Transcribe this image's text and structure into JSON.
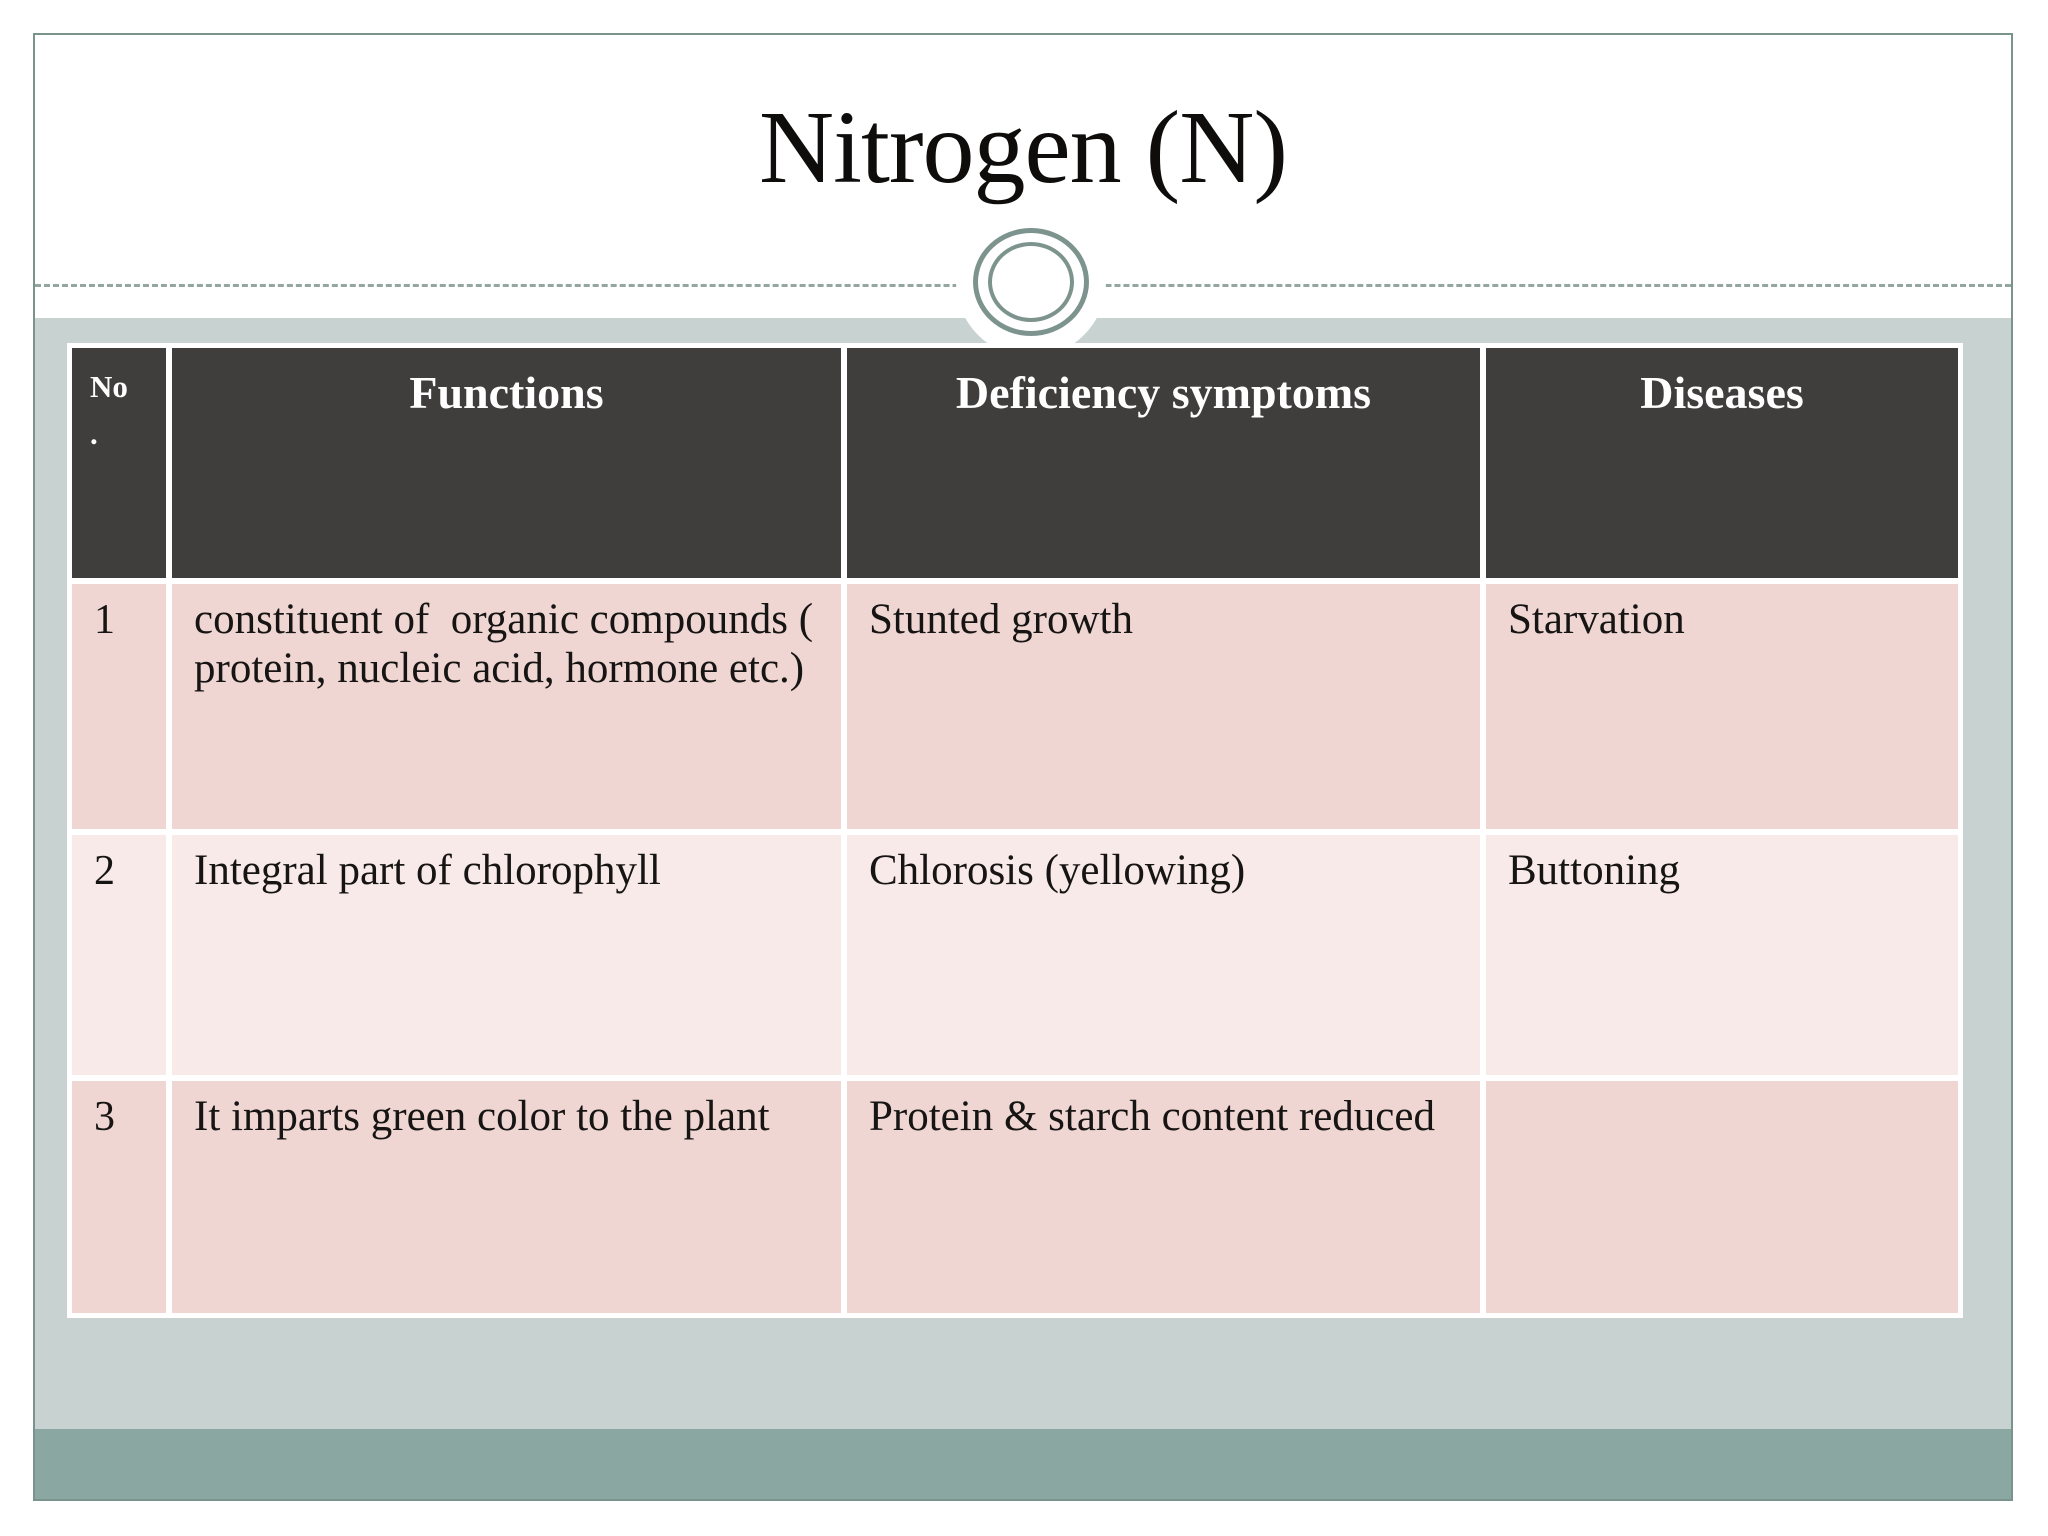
{
  "slide": {
    "title": "Nitrogen (N)"
  },
  "table": {
    "columns": [
      "No\n.",
      "Functions",
      "Deficiency symptoms",
      "Diseases"
    ],
    "rows": [
      {
        "no": "1",
        "function": "constituent of  organic compounds ( protein, nucleic acid, hormone etc.)",
        "symptom": "Stunted growth",
        "disease": "Starvation"
      },
      {
        "no": "2",
        "function": "Integral part of chlorophyll",
        "symptom": "Chlorosis (yellowing)",
        "disease": "Buttoning"
      },
      {
        "no": "3",
        "function": "It imparts green color to the plant",
        "symptom": "Protein & starch content reduced",
        "disease": ""
      }
    ]
  },
  "colors": {
    "header_background": "#403d3d",
    "row_pink": "#efd6d2",
    "row_pink_light": "#f8eae8",
    "band_light": "#c8d2d1",
    "band_dark": "#8ba7a2",
    "accent_ring": "#7d948e",
    "slide_border": "#7a948d"
  }
}
